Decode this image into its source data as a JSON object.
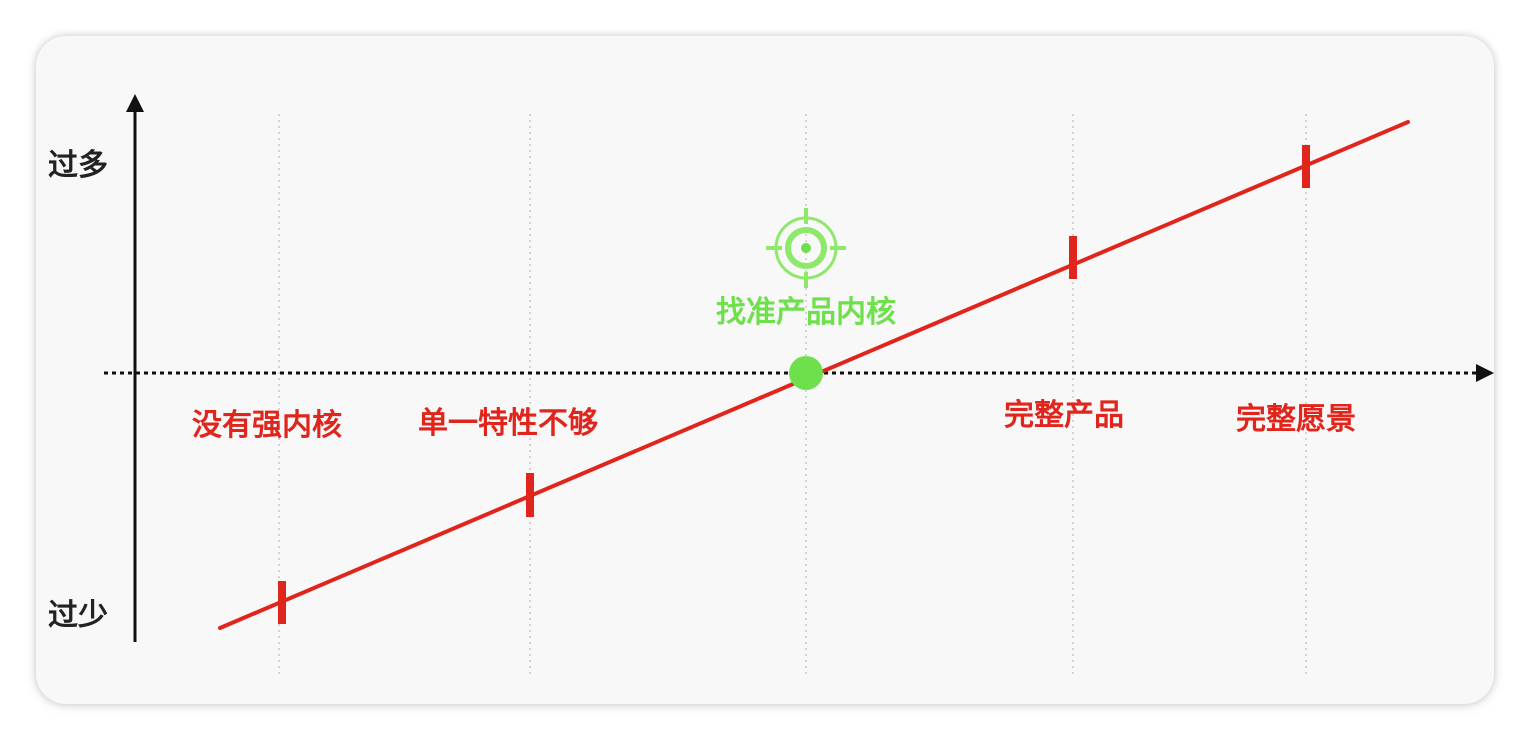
{
  "y_axis": {
    "top_label": "过多",
    "bottom_label": "过少"
  },
  "stages": [
    {
      "label": "没有强内核"
    },
    {
      "label": "单一特性不够"
    },
    {
      "label": "完整产品"
    },
    {
      "label": "完整愿景"
    }
  ],
  "target": {
    "label": "找准产品内核",
    "icon": "target-icon"
  },
  "colors": {
    "line": "#e0261c",
    "stage_text": "#e0261c",
    "target": "#6ee04c",
    "axis": "#111111",
    "grid": "#c8c8c8",
    "card": "#f8f8f8"
  }
}
